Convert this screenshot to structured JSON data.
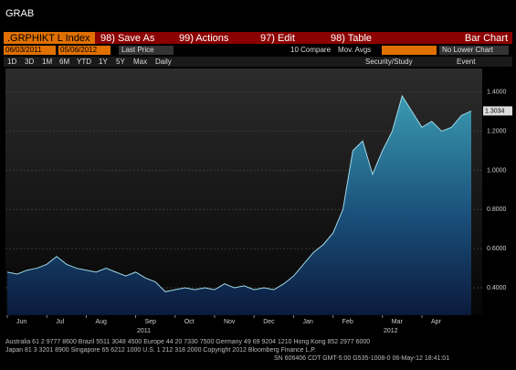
{
  "header": {
    "title": "GRAB"
  },
  "toolbar": {
    "ticker": ".GRPHIKT L Index",
    "buttons": [
      "98) Save As",
      "99) Actions",
      "97) Edit",
      "98) Table"
    ],
    "chart_type": "Bar Chart"
  },
  "controls": {
    "start_date": "06/03/2011",
    "end_date": "05/06/2012",
    "field": "Last Price",
    "compare": "10 Compare",
    "mov_avgs": "Mov. Avgs",
    "lower_chart": "No Lower Chart",
    "periods": [
      "1D",
      "3D",
      "1M",
      "6M",
      "YTD",
      "1Y",
      "5Y",
      "Max",
      "Daily"
    ],
    "security_study": "Security/Study",
    "event": "Event"
  },
  "chart_data": {
    "type": "area",
    "categories": [
      "Jun",
      null,
      null,
      null,
      "Jul",
      null,
      null,
      null,
      "Aug",
      null,
      null,
      null,
      null,
      "Sep",
      null,
      null,
      null,
      "Oct",
      null,
      null,
      null,
      "Nov",
      null,
      null,
      null,
      "Dec",
      null,
      null,
      null,
      "Jan",
      null,
      null,
      null,
      "Feb",
      null,
      null,
      null,
      null,
      "Mar",
      null,
      null,
      null,
      "Apr",
      null,
      null,
      null,
      null,
      null
    ],
    "values": [
      0.48,
      0.47,
      0.49,
      0.5,
      0.52,
      0.56,
      0.52,
      0.5,
      0.49,
      0.48,
      0.5,
      0.48,
      0.46,
      0.48,
      0.45,
      0.43,
      0.38,
      0.39,
      0.4,
      0.39,
      0.4,
      0.39,
      0.42,
      0.4,
      0.41,
      0.39,
      0.4,
      0.39,
      0.42,
      0.46,
      0.52,
      0.58,
      0.62,
      0.68,
      0.8,
      1.1,
      1.15,
      0.98,
      1.1,
      1.2,
      1.38,
      1.3,
      1.22,
      1.25,
      1.2,
      1.22,
      1.28,
      1.3034
    ],
    "last_price": 1.3034,
    "year_labels": [
      "2011",
      "2012"
    ],
    "ylim": [
      0.26,
      1.52
    ],
    "yticks": [
      {
        "value": 0.4,
        "label": "0.4000"
      },
      {
        "value": 0.6,
        "label": "0.6000"
      },
      {
        "value": 0.8,
        "label": "0.8000"
      },
      {
        "value": 1.0,
        "label": "1.0000"
      },
      {
        "value": 1.2,
        "label": "1.2000"
      },
      {
        "value": 1.4,
        "label": "1.4000"
      }
    ],
    "color": "#3a9ab0"
  },
  "footer": [
    "Australia 61 2 9777 8600 Brazil 5511 3048 4500 Europe 44 20 7330 7500 Germany 49 69 9204 1210 Hong Kong 852 2977 6000",
    "Japan 81 3 3201 8900       Singapore 65 6212 1000       U.S. 1 212 318 2000       Copyright 2012 Bloomberg Finance L.P.",
    "SN 606406 CDT GMT-5:00 G535-1008-0 06-May-12 18:41:01"
  ]
}
